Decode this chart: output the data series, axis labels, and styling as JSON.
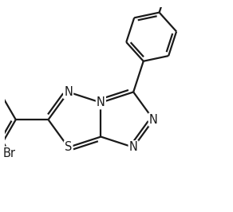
{
  "background_color": "#ffffff",
  "line_color": "#1a1a1a",
  "line_width": 1.6,
  "font_size": 10.5,
  "figsize": [
    2.92,
    2.66
  ],
  "dpi": 100,
  "xlim": [
    -2.8,
    3.8
  ],
  "ylim": [
    -3.0,
    2.8
  ]
}
